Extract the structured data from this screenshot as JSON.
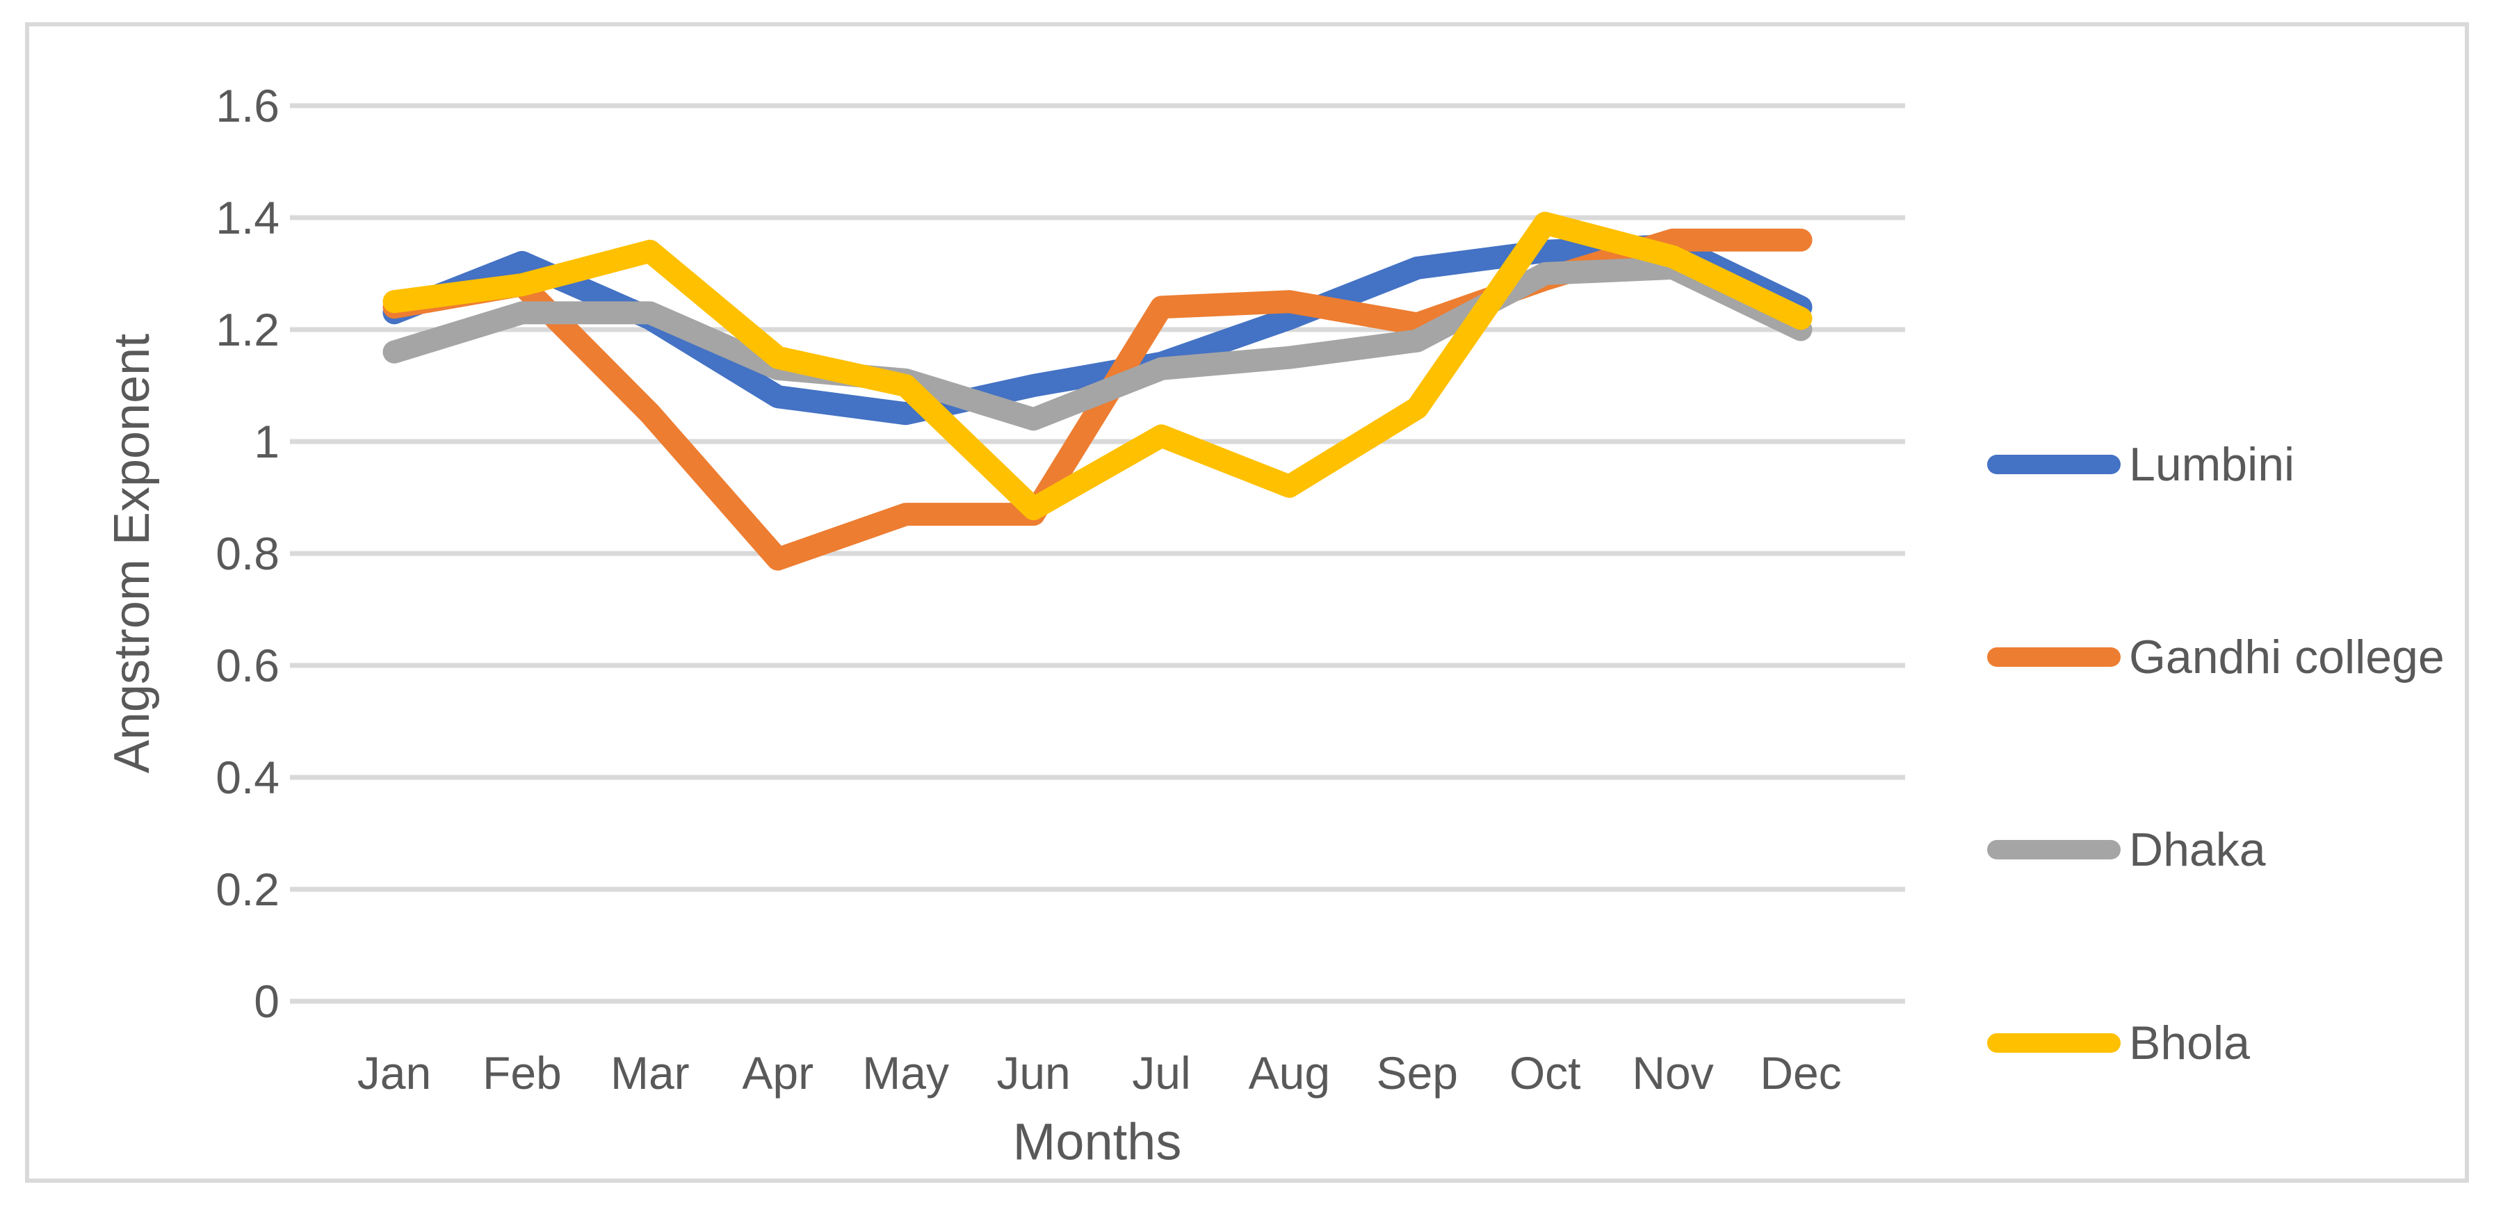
{
  "figure": {
    "background": "#FFFFFF",
    "frame_border_color": "#D9D9D9",
    "text_color": "#595959",
    "gridline_color": "#D9D9D9"
  },
  "chart_data": {
    "type": "line",
    "title": "",
    "xlabel": "Months",
    "ylabel": "Angstrom Exponent",
    "categories": [
      "Jan",
      "Feb",
      "Mar",
      "Apr",
      "May",
      "Jun",
      "Jul",
      "Aug",
      "Sep",
      "Oct",
      "Nov",
      "Dec"
    ],
    "ylim": [
      0,
      1.6
    ],
    "ytick_interval": 0.2,
    "ytick_labels": [
      "0",
      "0.2",
      "0.4",
      "0.6",
      "0.8",
      "1",
      "1.2",
      "1.4",
      "1.6"
    ],
    "grid": true,
    "legend_position": "right",
    "series": [
      {
        "name": "Lumbini",
        "color": "#4472C4",
        "values": [
          1.23,
          1.32,
          1.22,
          1.08,
          1.05,
          1.1,
          1.14,
          1.22,
          1.31,
          1.34,
          1.35,
          1.24
        ]
      },
      {
        "name": "Gandhi college",
        "color": "#ED7D31",
        "values": [
          1.24,
          1.28,
          1.05,
          0.79,
          0.87,
          0.87,
          1.24,
          1.25,
          1.21,
          1.29,
          1.36,
          1.36
        ]
      },
      {
        "name": "Dhaka",
        "color": "#A5A5A5",
        "values": [
          1.16,
          1.23,
          1.23,
          1.13,
          1.11,
          1.04,
          1.13,
          1.15,
          1.18,
          1.3,
          1.31,
          1.2
        ]
      },
      {
        "name": "Bhola",
        "color": "#FFC000",
        "values": [
          1.25,
          1.28,
          1.34,
          1.15,
          1.1,
          0.88,
          1.01,
          0.92,
          1.06,
          1.39,
          1.33,
          1.22
        ]
      }
    ]
  }
}
